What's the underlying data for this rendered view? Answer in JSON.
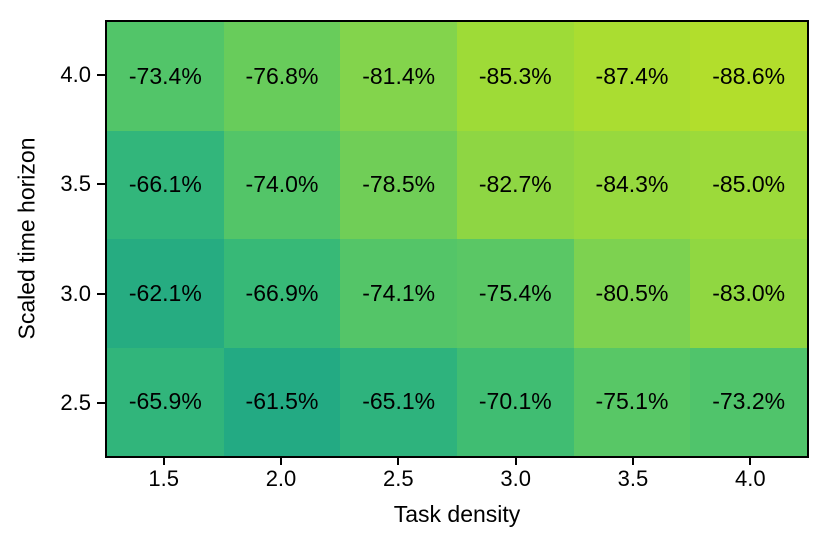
{
  "chart_data": {
    "type": "heatmap",
    "xlabel": "Task density",
    "ylabel": "Scaled time horizon",
    "x_categories": [
      "1.5",
      "2.0",
      "2.5",
      "3.0",
      "3.5",
      "4.0"
    ],
    "y_categories": [
      "4.0",
      "3.5",
      "3.0",
      "2.5"
    ],
    "x_range": [
      1.25,
      4.25
    ],
    "y_range": [
      2.25,
      4.25
    ],
    "grid": false,
    "legend": "none",
    "colormap": "viridis-green-segment",
    "values": [
      [
        -73.4,
        -76.8,
        -81.4,
        -85.3,
        -87.4,
        -88.6
      ],
      [
        -66.1,
        -74.0,
        -78.5,
        -82.7,
        -84.3,
        -85.0
      ],
      [
        -62.1,
        -66.9,
        -74.1,
        -75.4,
        -80.5,
        -83.0
      ],
      [
        -65.9,
        -61.5,
        -65.1,
        -70.1,
        -75.1,
        -73.2
      ]
    ],
    "labels": [
      [
        "-73.4%",
        "-76.8%",
        "-81.4%",
        "-85.3%",
        "-87.4%",
        "-88.6%"
      ],
      [
        "-66.1%",
        "-74.0%",
        "-78.5%",
        "-82.7%",
        "-84.3%",
        "-85.0%"
      ],
      [
        "-62.1%",
        "-66.9%",
        "-74.1%",
        "-75.4%",
        "-80.5%",
        "-83.0%"
      ],
      [
        "-65.9%",
        "-61.5%",
        "-65.1%",
        "-70.1%",
        "-75.1%",
        "-73.2%"
      ]
    ],
    "cell_colors": [
      [
        "#52c569",
        "#68cc5b",
        "#83d44c",
        "#9edb37",
        "#aadd31",
        "#b2de2c"
      ],
      [
        "#32b67b",
        "#53c568",
        "#70ce57",
        "#8ed643",
        "#97d93e",
        "#9cda3a"
      ],
      [
        "#26ac81",
        "#37b977",
        "#54c568",
        "#5ac765",
        "#7dd250",
        "#90d741"
      ],
      [
        "#31b57b",
        "#23aa83",
        "#2eb37d",
        "#40bd72",
        "#58c766",
        "#50c46b"
      ]
    ],
    "text_color": "#000000",
    "axis_color": "#000000",
    "background_color": "#ffffff"
  }
}
